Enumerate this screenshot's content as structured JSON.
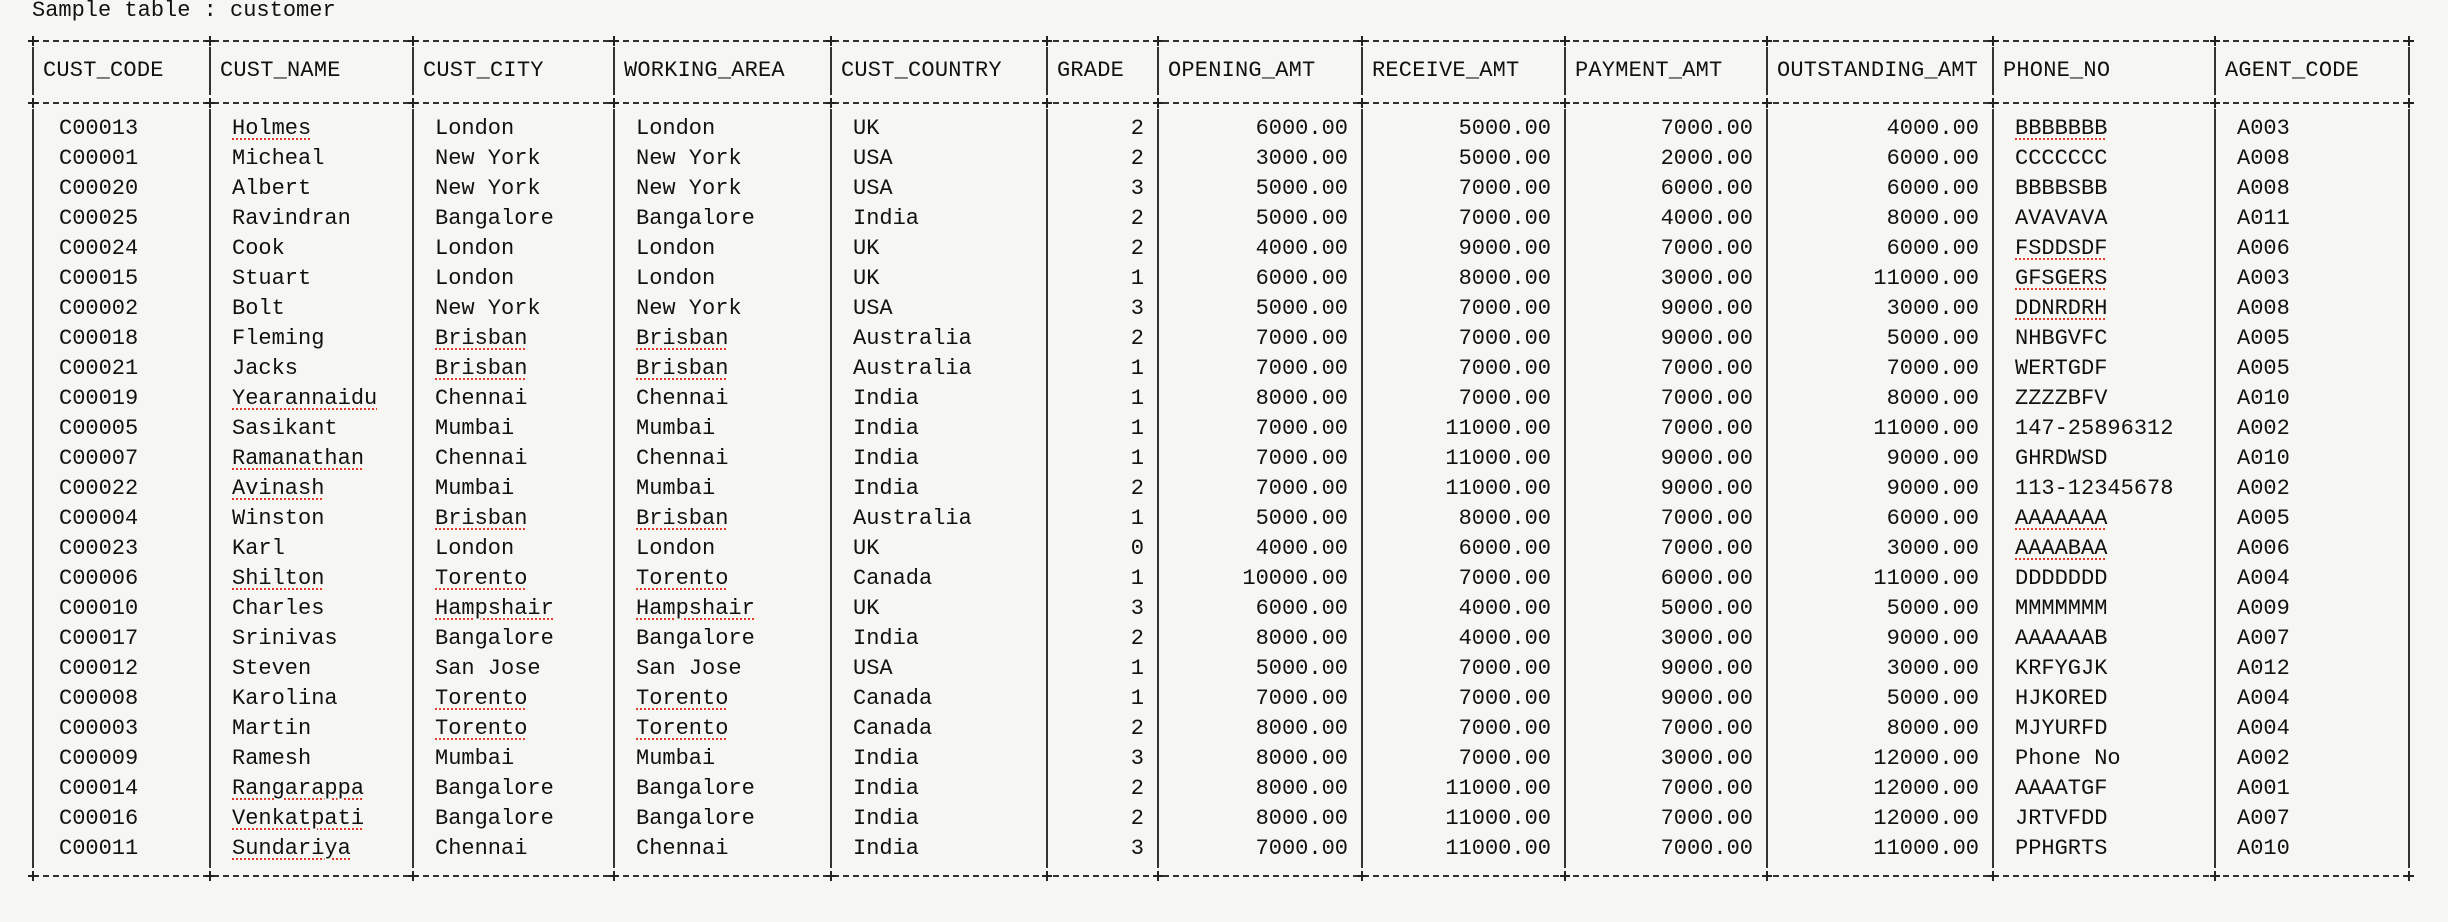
{
  "title": "Sample table : customer",
  "table": {
    "name": "customer",
    "columns": [
      {
        "key": "cust_code",
        "label": "CUST_CODE",
        "align": "left"
      },
      {
        "key": "cust_name",
        "label": "CUST_NAME",
        "align": "left"
      },
      {
        "key": "cust_city",
        "label": "CUST_CITY",
        "align": "left"
      },
      {
        "key": "working_area",
        "label": "WORKING_AREA",
        "align": "left"
      },
      {
        "key": "cust_country",
        "label": "CUST_COUNTRY",
        "align": "left"
      },
      {
        "key": "grade",
        "label": "GRADE",
        "align": "right"
      },
      {
        "key": "opening_amt",
        "label": "OPENING_AMT",
        "align": "right"
      },
      {
        "key": "receive_amt",
        "label": "RECEIVE_AMT",
        "align": "right"
      },
      {
        "key": "payment_amt",
        "label": "PAYMENT_AMT",
        "align": "right"
      },
      {
        "key": "outstanding_amt",
        "label": "OUTSTANDING_AMT",
        "align": "right"
      },
      {
        "key": "phone_no",
        "label": "PHONE_NO",
        "align": "left"
      },
      {
        "key": "agent_code",
        "label": "AGENT_CODE",
        "align": "left"
      }
    ],
    "rows": [
      [
        "C00013",
        "Holmes",
        "London",
        "London",
        "UK",
        "2",
        "6000.00",
        "5000.00",
        "7000.00",
        "4000.00",
        "BBBBBBB",
        "A003"
      ],
      [
        "C00001",
        "Micheal",
        "New York",
        "New York",
        "USA",
        "2",
        "3000.00",
        "5000.00",
        "2000.00",
        "6000.00",
        "CCCCCCC",
        "A008"
      ],
      [
        "C00020",
        "Albert",
        "New York",
        "New York",
        "USA",
        "3",
        "5000.00",
        "7000.00",
        "6000.00",
        "6000.00",
        "BBBBSBB",
        "A008"
      ],
      [
        "C00025",
        "Ravindran",
        "Bangalore",
        "Bangalore",
        "India",
        "2",
        "5000.00",
        "7000.00",
        "4000.00",
        "8000.00",
        "AVAVAVA",
        "A011"
      ],
      [
        "C00024",
        "Cook",
        "London",
        "London",
        "UK",
        "2",
        "4000.00",
        "9000.00",
        "7000.00",
        "6000.00",
        "FSDDSDF",
        "A006"
      ],
      [
        "C00015",
        "Stuart",
        "London",
        "London",
        "UK",
        "1",
        "6000.00",
        "8000.00",
        "3000.00",
        "11000.00",
        "GFSGERS",
        "A003"
      ],
      [
        "C00002",
        "Bolt",
        "New York",
        "New York",
        "USA",
        "3",
        "5000.00",
        "7000.00",
        "9000.00",
        "3000.00",
        "DDNRDRH",
        "A008"
      ],
      [
        "C00018",
        "Fleming",
        "Brisban",
        "Brisban",
        "Australia",
        "2",
        "7000.00",
        "7000.00",
        "9000.00",
        "5000.00",
        "NHBGVFC",
        "A005"
      ],
      [
        "C00021",
        "Jacks",
        "Brisban",
        "Brisban",
        "Australia",
        "1",
        "7000.00",
        "7000.00",
        "7000.00",
        "7000.00",
        "WERTGDF",
        "A005"
      ],
      [
        "C00019",
        "Yearannaidu",
        "Chennai",
        "Chennai",
        "India",
        "1",
        "8000.00",
        "7000.00",
        "7000.00",
        "8000.00",
        "ZZZZBFV",
        "A010"
      ],
      [
        "C00005",
        "Sasikant",
        "Mumbai",
        "Mumbai",
        "India",
        "1",
        "7000.00",
        "11000.00",
        "7000.00",
        "11000.00",
        "147-25896312",
        "A002"
      ],
      [
        "C00007",
        "Ramanathan",
        "Chennai",
        "Chennai",
        "India",
        "1",
        "7000.00",
        "11000.00",
        "9000.00",
        "9000.00",
        "GHRDWSD",
        "A010"
      ],
      [
        "C00022",
        "Avinash",
        "Mumbai",
        "Mumbai",
        "India",
        "2",
        "7000.00",
        "11000.00",
        "9000.00",
        "9000.00",
        "113-12345678",
        "A002"
      ],
      [
        "C00004",
        "Winston",
        "Brisban",
        "Brisban",
        "Australia",
        "1",
        "5000.00",
        "8000.00",
        "7000.00",
        "6000.00",
        "AAAAAAA",
        "A005"
      ],
      [
        "C00023",
        "Karl",
        "London",
        "London",
        "UK",
        "0",
        "4000.00",
        "6000.00",
        "7000.00",
        "3000.00",
        "AAAABAA",
        "A006"
      ],
      [
        "C00006",
        "Shilton",
        "Torento",
        "Torento",
        "Canada",
        "1",
        "10000.00",
        "7000.00",
        "6000.00",
        "11000.00",
        "DDDDDDD",
        "A004"
      ],
      [
        "C00010",
        "Charles",
        "Hampshair",
        "Hampshair",
        "UK",
        "3",
        "6000.00",
        "4000.00",
        "5000.00",
        "5000.00",
        "MMMMMMM",
        "A009"
      ],
      [
        "C00017",
        "Srinivas",
        "Bangalore",
        "Bangalore",
        "India",
        "2",
        "8000.00",
        "4000.00",
        "3000.00",
        "9000.00",
        "AAAAAAB",
        "A007"
      ],
      [
        "C00012",
        "Steven",
        "San Jose",
        "San Jose",
        "USA",
        "1",
        "5000.00",
        "7000.00",
        "9000.00",
        "3000.00",
        "KRFYGJK",
        "A012"
      ],
      [
        "C00008",
        "Karolina",
        "Torento",
        "Torento",
        "Canada",
        "1",
        "7000.00",
        "7000.00",
        "9000.00",
        "5000.00",
        "HJKORED",
        "A004"
      ],
      [
        "C00003",
        "Martin",
        "Torento",
        "Torento",
        "Canada",
        "2",
        "8000.00",
        "7000.00",
        "7000.00",
        "8000.00",
        "MJYURFD",
        "A004"
      ],
      [
        "C00009",
        "Ramesh",
        "Mumbai",
        "Mumbai",
        "India",
        "3",
        "8000.00",
        "7000.00",
        "3000.00",
        "12000.00",
        "Phone No",
        "A002"
      ],
      [
        "C00014",
        "Rangarappa",
        "Bangalore",
        "Bangalore",
        "India",
        "2",
        "8000.00",
        "11000.00",
        "7000.00",
        "12000.00",
        "AAAATGF",
        "A001"
      ],
      [
        "C00016",
        "Venkatpati",
        "Bangalore",
        "Bangalore",
        "India",
        "2",
        "8000.00",
        "11000.00",
        "7000.00",
        "12000.00",
        "JRTVFDD",
        "A007"
      ],
      [
        "C00011",
        "Sundariya",
        "Chennai",
        "Chennai",
        "India",
        "3",
        "7000.00",
        "11000.00",
        "7000.00",
        "11000.00",
        "PPHGRTS",
        "A010"
      ]
    ],
    "spellcheck_flagged_words": [
      "Holmes",
      "Yearannaidu",
      "Ramanathan",
      "Avinash",
      "Shilton",
      "Rangarappa",
      "Venkatpati",
      "Sundariya",
      "Brisban",
      "Torento",
      "Hampshair",
      "BBBBBBB",
      "FSDDSDF",
      "GFSGERS",
      "DDNRDRH",
      "AAAAAAA",
      "AAAABAA"
    ],
    "colors": {
      "background": "#f6f6f3",
      "text": "#111111",
      "border": "#333333",
      "spellcheck_underline": "#e03a2e"
    }
  }
}
